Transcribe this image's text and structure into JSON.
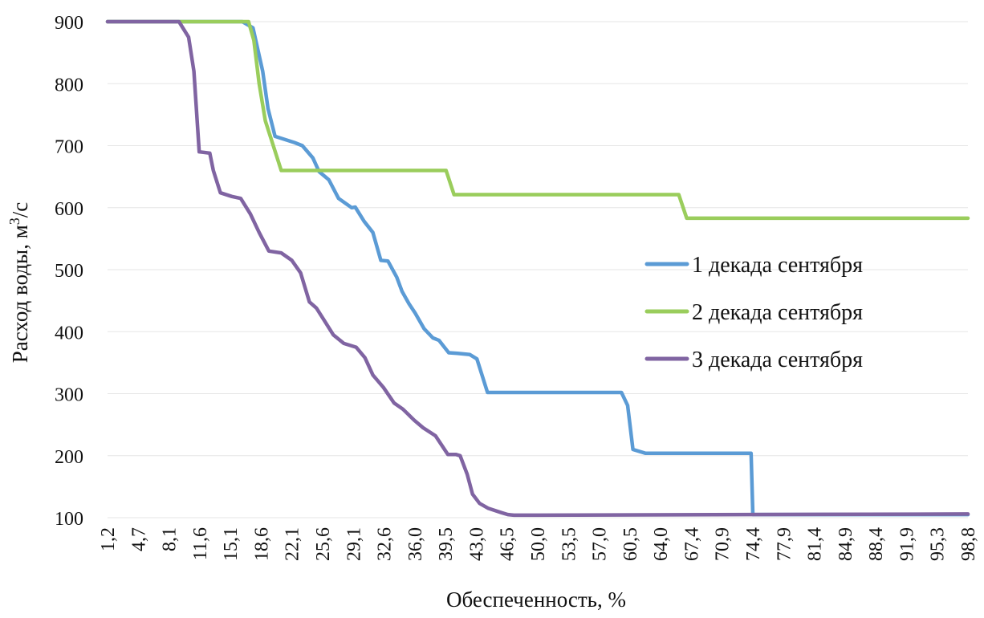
{
  "chart_data": {
    "type": "line",
    "xlabel": "Обеспеченность, %",
    "ylabel": "Расход воды, м³/с",
    "ylabel_parts": [
      "Расход воды, м",
      "3",
      "/с"
    ],
    "ylim": [
      100,
      900
    ],
    "yticks": [
      100,
      200,
      300,
      400,
      500,
      600,
      700,
      800,
      900
    ],
    "ytick_labels": [
      "100",
      "200",
      "300",
      "400",
      "500",
      "600",
      "700",
      "800",
      "900"
    ],
    "xlim": [
      1.2,
      98.8
    ],
    "xtick_labels": [
      "1,2",
      "4,7",
      "8,1",
      "11,6",
      "15,1",
      "18,6",
      "22,1",
      "25,6",
      "29,1",
      "32,6",
      "36,0",
      "39,5",
      "43,0",
      "46,5",
      "50,0",
      "53,5",
      "57,0",
      "60,5",
      "64,0",
      "67,4",
      "70,9",
      "74,4",
      "77,9",
      "81,4",
      "84,9",
      "88,4",
      "91,9",
      "95,3",
      "98,8"
    ],
    "grid": "horizontal",
    "legend": "right",
    "series": [
      {
        "name": "1 декада сентября",
        "color": "#5b9bd5",
        "x": [
          1.2,
          16.5,
          17.7,
          18.8,
          19.4,
          20.2,
          22.4,
          23.3,
          24.5,
          25.2,
          26.3,
          27.4,
          28.9,
          29.3,
          30.3,
          31.3,
          32.2,
          33.0,
          34.0,
          34.6,
          35.4,
          36.1,
          37.1,
          38.1,
          38.8,
          39.9,
          40.9,
          42.3,
          43.1,
          44.3,
          45.2,
          46.2,
          46.7,
          59.3,
          59.5,
          60.2,
          60.8,
          62.2,
          73.4,
          74.2,
          74.4,
          98.8
        ],
        "y": [
          900,
          900,
          890,
          820,
          760,
          715,
          705,
          700,
          680,
          658,
          645,
          615,
          600,
          601,
          578,
          560,
          515,
          514,
          488,
          465,
          445,
          430,
          405,
          390,
          386,
          366,
          365,
          363,
          356,
          302,
          302,
          302,
          302,
          302,
          302,
          281,
          210,
          204,
          204,
          204,
          105,
          105
        ]
      },
      {
        "name": "2 декада сентября",
        "color": "#9acd5c",
        "x": [
          1.2,
          9.4,
          17.2,
          17.8,
          18.4,
          19.1,
          20.9,
          39.6,
          40.5,
          66.0,
          66.9,
          98.8
        ],
        "y": [
          900,
          900,
          900,
          870,
          800,
          740,
          660,
          660,
          621,
          621,
          583,
          583
        ]
      },
      {
        "name": "3 декада сентября",
        "color": "#8064a2",
        "x": [
          1.2,
          9.3,
          10.4,
          11.0,
          11.6,
          12.8,
          13.2,
          14.0,
          15.3,
          16.3,
          17.4,
          18.4,
          19.5,
          20.9,
          22.1,
          23.1,
          24.1,
          24.9,
          25.7,
          26.8,
          28.0,
          29.4,
          30.4,
          31.3,
          32.5,
          33.7,
          34.7,
          36.0,
          37.0,
          38.4,
          39.8,
          40.7,
          41.2,
          42.0,
          42.6,
          43.4,
          44.4,
          45.9,
          46.6,
          47.3,
          48.0,
          50.0,
          98.8
        ],
        "y": [
          900,
          900,
          875,
          820,
          690,
          688,
          660,
          624,
          618,
          615,
          590,
          560,
          530,
          527,
          515,
          495,
          448,
          438,
          420,
          395,
          381,
          375,
          358,
          330,
          310,
          285,
          275,
          257,
          245,
          232,
          202,
          202,
          200,
          170,
          138,
          123,
          115,
          108,
          105,
          104,
          104,
          104,
          106
        ]
      }
    ]
  }
}
